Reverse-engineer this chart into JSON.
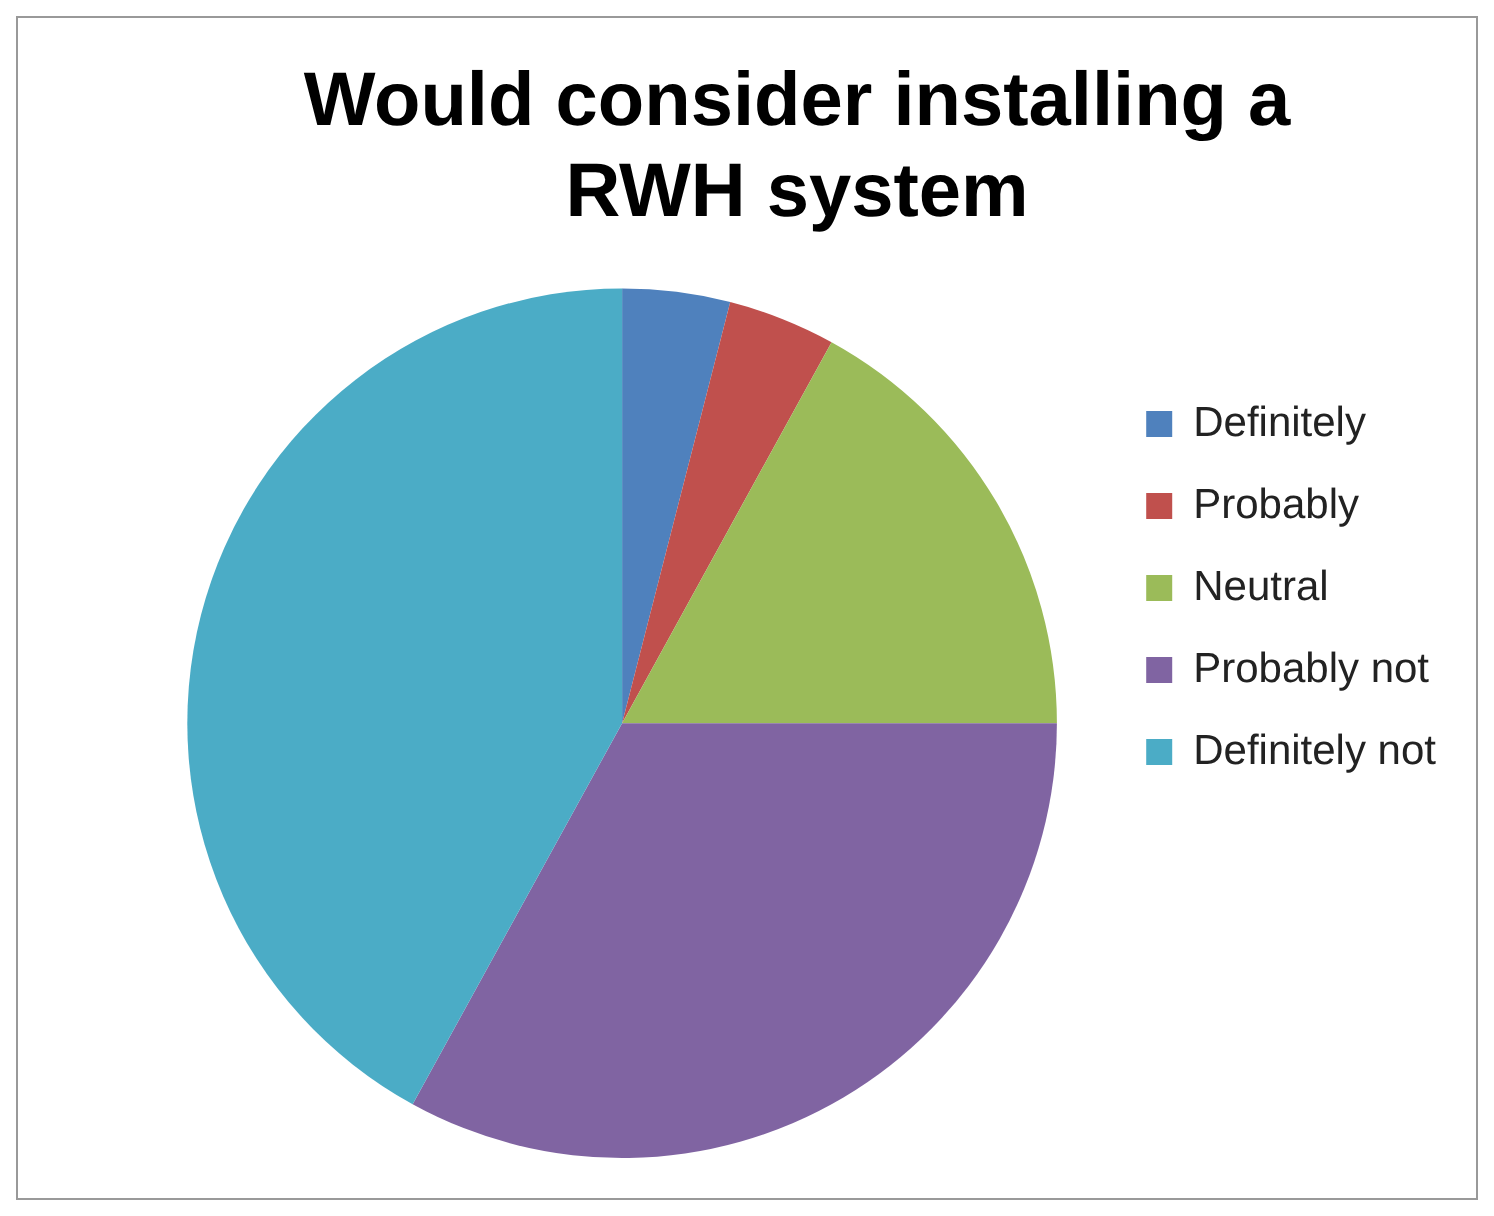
{
  "chart_data": {
    "type": "pie",
    "title": "Would consider installing a RWH system",
    "categories": [
      "Definitely",
      "Probably",
      "Neutral",
      "Probably not",
      "Definitely not"
    ],
    "values": [
      4,
      4,
      17,
      33,
      42
    ],
    "colors": [
      "#4f81bd",
      "#c0504d",
      "#9bbb59",
      "#8064a2",
      "#4bacc6"
    ],
    "legend": "right"
  }
}
